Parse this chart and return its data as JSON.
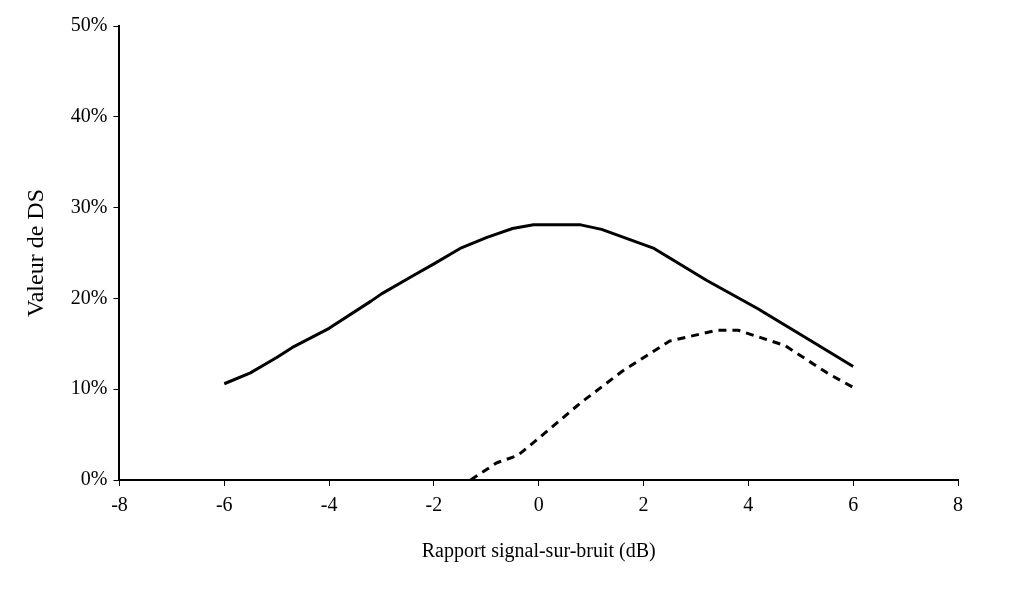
{
  "chart_data": {
    "type": "line",
    "xlabel": "Rapport signal-sur-bruit (dB)",
    "ylabel": "Valeur de DS",
    "xlim": [
      -8,
      8
    ],
    "xticks": [
      -8,
      -6,
      -4,
      -2,
      0,
      2,
      4,
      6,
      8
    ],
    "ylim": [
      0,
      50
    ],
    "yticks": [
      {
        "value": 0,
        "label": "0%"
      },
      {
        "value": 10,
        "label": "10%"
      },
      {
        "value": 20,
        "label": "20%"
      },
      {
        "value": 30,
        "label": "30%"
      },
      {
        "value": 40,
        "label": "40%"
      },
      {
        "value": 50,
        "label": "50%"
      }
    ],
    "grid": false,
    "legend": false,
    "marker": "none",
    "series": [
      {
        "color": "#000000",
        "line_style": "solid",
        "x": [
          -6,
          -5.5,
          -5,
          -4.7,
          -4,
          -3.2,
          -3,
          -2.4,
          -2,
          -1.5,
          -1,
          -0.5,
          -0.1,
          0.8,
          1.2,
          2.2,
          3.2,
          4.2,
          5.2,
          6
        ],
        "values": [
          10.6,
          11.8,
          13.5,
          14.6,
          16.7,
          19.7,
          20.5,
          22.5,
          23.8,
          25.5,
          26.7,
          27.7,
          28.1,
          28.1,
          27.6,
          25.5,
          22,
          18.8,
          15.3,
          12.5
        ]
      },
      {
        "color": "#000000",
        "line_style": "dashed",
        "x": [
          -1.3,
          -0.8,
          -0.4,
          0,
          0.8,
          1.6,
          2.5,
          3.4,
          3.8,
          4.7,
          5.5,
          6
        ],
        "values": [
          0,
          1.9,
          2.7,
          4.6,
          8.5,
          12,
          15.3,
          16.5,
          16.5,
          14.8,
          11.8,
          10.2
        ]
      }
    ]
  }
}
